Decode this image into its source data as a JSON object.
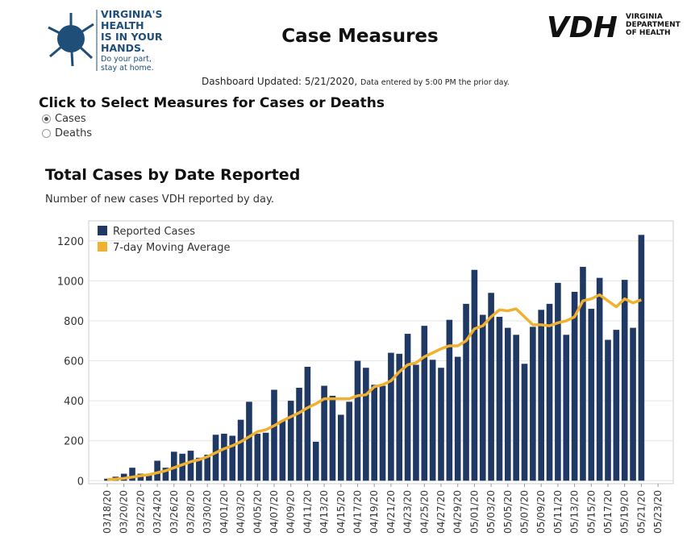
{
  "logo": {
    "lines": [
      "VIRGINIA'S",
      "HEALTH",
      "IS IN YOUR",
      "HANDS."
    ],
    "tagline": [
      "Do your part,",
      "stay at home."
    ]
  },
  "vdh": {
    "mark": "VDH",
    "lines": [
      "VIRGINIA",
      "DEPARTMENT",
      "OF HEALTH"
    ]
  },
  "title": "Case Measures",
  "updated": "Dashboard Updated: 5/21/2020,",
  "updated_note": "Data entered by 5:00 PM the prior day.",
  "selector": {
    "title": "Click to Select Measures for Cases or Deaths",
    "options": [
      "Cases",
      "Deaths"
    ]
  },
  "chart_data": {
    "type": "bar",
    "title": "Total Cases by Date Reported",
    "subtitle": "Number of new cases VDH reported by day.",
    "categories": [
      "03/18/20",
      null,
      "03/20/20",
      null,
      "03/22/20",
      null,
      "03/24/20",
      null,
      "03/26/20",
      null,
      "03/28/20",
      null,
      "03/30/20",
      null,
      "04/01/20",
      null,
      "04/03/20",
      null,
      "04/05/20",
      null,
      "04/07/20",
      null,
      "04/09/20",
      null,
      "04/11/20",
      null,
      "04/13/20",
      null,
      "04/15/20",
      null,
      "04/17/20",
      null,
      "04/19/20",
      null,
      "04/21/20",
      null,
      "04/23/20",
      null,
      "04/25/20",
      null,
      "04/27/20",
      null,
      "04/29/20",
      null,
      "05/01/20",
      null,
      "05/03/20",
      null,
      "05/05/20",
      null,
      "05/07/20",
      null,
      "05/09/20",
      null,
      "05/11/20",
      null,
      "05/13/20",
      null,
      "05/15/20",
      null,
      "05/17/20",
      null,
      "05/19/20",
      null,
      "05/21/20",
      null,
      "05/23/20"
    ],
    "series": [
      {
        "name": "Reported Cases",
        "color": "#1f3864",
        "type": "bar",
        "values": [
          10,
          20,
          35,
          65,
          35,
          35,
          100,
          65,
          145,
          135,
          150,
          115,
          130,
          230,
          235,
          225,
          305,
          395,
          235,
          240,
          455,
          300,
          400,
          465,
          570,
          195,
          475,
          425,
          330,
          395,
          600,
          565,
          480,
          475,
          640,
          635,
          735,
          580,
          775,
          605,
          565,
          805,
          620,
          885,
          1055,
          830,
          940,
          820,
          765,
          730,
          585,
          770,
          855,
          885,
          990,
          730,
          945,
          1070,
          860,
          1015,
          705,
          755,
          1005,
          765,
          1230,
          null,
          null
        ]
      },
      {
        "name": "7-day Moving Average",
        "color": "#f0b030",
        "type": "line",
        "values": [
          5,
          8,
          12,
          18,
          25,
          30,
          40,
          50,
          65,
          80,
          95,
          105,
          120,
          140,
          160,
          175,
          195,
          220,
          245,
          255,
          275,
          300,
          320,
          340,
          365,
          385,
          410,
          410,
          410,
          410,
          425,
          430,
          470,
          480,
          500,
          545,
          580,
          590,
          620,
          640,
          660,
          675,
          675,
          700,
          760,
          775,
          820,
          855,
          850,
          860,
          820,
          780,
          780,
          775,
          790,
          800,
          820,
          900,
          910,
          930,
          900,
          870,
          910,
          890,
          905,
          null,
          null
        ]
      }
    ],
    "ylim": [
      -15,
      1300
    ],
    "yticks": [
      0,
      200,
      400,
      600,
      800,
      1000,
      1200
    ],
    "grid": true,
    "legend": "top-left"
  }
}
